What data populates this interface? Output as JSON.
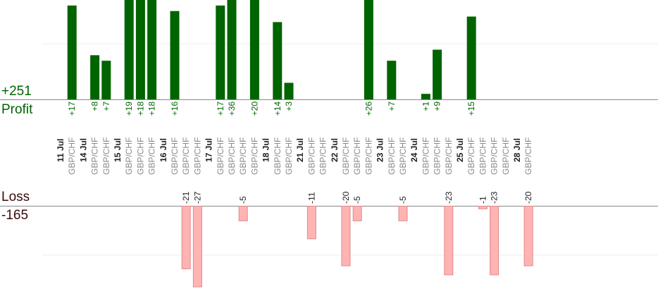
{
  "chart_data": {
    "type": "bar",
    "summary": {
      "profit_total": "+251",
      "profit_label": "Profit",
      "loss_label": "Loss",
      "loss_total": "-165"
    },
    "colors": {
      "profit_bar": "#006400",
      "loss_bar": "#ffb3b3",
      "loss_bar_border": "#e08a8a",
      "date_text": "#222222",
      "pair_text": "#8a8a8a",
      "profit_text": "#006400",
      "loss_text": "#222222",
      "axis": "#888888",
      "grid": "#eeeeee"
    },
    "ylim_profit": [
      0,
      18
    ],
    "ylim_loss": [
      0,
      27
    ],
    "columns": [
      {
        "date": "11 Jul"
      },
      {
        "pair": "GBP/CHF",
        "value": 17
      },
      {
        "date": "14 Jul"
      },
      {
        "pair": "GBP/CHF",
        "value": 8
      },
      {
        "pair": "GBP/CHF",
        "value": 7
      },
      {
        "date": "15 Jul"
      },
      {
        "pair": "GBP/CHF",
        "value": 19
      },
      {
        "pair": "GBP/CHF",
        "value": 18
      },
      {
        "pair": "GBP/CHF",
        "value": 18
      },
      {
        "date": "16 Jul"
      },
      {
        "pair": "GBP/CHF",
        "value": 16
      },
      {
        "pair": "GBP/CHF",
        "value": -21
      },
      {
        "pair": "GBP/CHF",
        "value": -27
      },
      {
        "date": "17 Jul"
      },
      {
        "pair": "GBP/CHF",
        "value": 17
      },
      {
        "pair": "GBP/CHF",
        "value": 36
      },
      {
        "pair": "GBP/CHF",
        "value": -5
      },
      {
        "pair": "GBP/CHF",
        "value": 20
      },
      {
        "date": "18 Jul"
      },
      {
        "pair": "GBP/CHF",
        "value": 14
      },
      {
        "pair": "GBP/CHF",
        "value": 3
      },
      {
        "date": "21 Jul"
      },
      {
        "pair": "GBP/CHF",
        "value": -11
      },
      {
        "pair": "GBP/CHF"
      },
      {
        "date": "22 Jul"
      },
      {
        "pair": "GBP/CHF",
        "value": -20
      },
      {
        "pair": "GBP/CHF",
        "value": -5
      },
      {
        "pair": "GBP/CHF",
        "value": 26
      },
      {
        "date": "23 Jul"
      },
      {
        "pair": "GBP/CHF",
        "value": 7
      },
      {
        "pair": "GBP/CHF",
        "value": -5
      },
      {
        "date": "24 Jul"
      },
      {
        "pair": "GBP/CHF",
        "value": 1
      },
      {
        "pair": "GBP/CHF",
        "value": 9
      },
      {
        "pair": "GBP/CHF",
        "value": -23
      },
      {
        "date": "25 Jul"
      },
      {
        "pair": "GBP/CHF",
        "value": 15
      },
      {
        "pair": "GBP/CHF",
        "value": -1
      },
      {
        "pair": "GBP/CHF",
        "value": -23
      },
      {
        "pair": "GBP/CHF"
      },
      {
        "date": "28 Jul"
      },
      {
        "pair": "GBP/CHF",
        "value": -20
      }
    ]
  }
}
